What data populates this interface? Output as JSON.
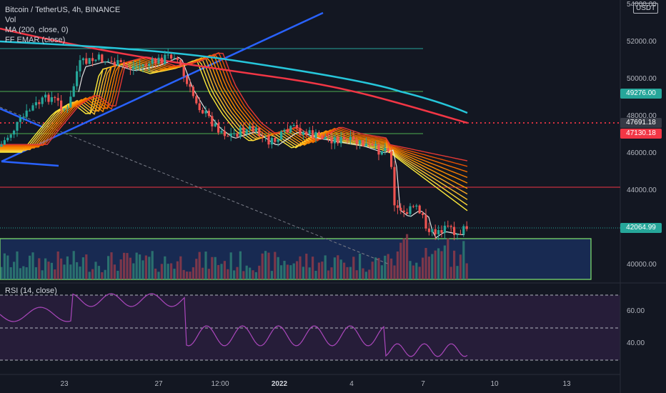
{
  "legend": {
    "symbol": "Bitcoin / TetherUS, 4h, BINANCE",
    "vol": "Vol",
    "ma": "MA (200, close, 0)",
    "emar": "FF EMAR (close)"
  },
  "rsi_label": "RSI (14, close)",
  "currency": "USDT",
  "price_axis": {
    "ticks": [
      "54000.00",
      "52000.00",
      "50000.00",
      "48000.00",
      "46000.00",
      "44000.00",
      "40000.00"
    ],
    "tags": [
      {
        "label": "49276.00",
        "color": "#26a69a"
      },
      {
        "label": "47691.18",
        "color": "#363a45"
      },
      {
        "label": "47130.18",
        "color": "#f23645"
      },
      {
        "label": "42064.99",
        "color": "#26a69a"
      }
    ]
  },
  "rsi_axis": {
    "ticks": [
      "60.00",
      "40.00"
    ]
  },
  "time_axis": {
    "ticks": [
      "23",
      "27",
      "12:00",
      "2022",
      "4",
      "7",
      "10",
      "13"
    ]
  },
  "chart_data": {
    "type": "candlestick",
    "symbol": "BTCUSDT",
    "timeframe": "4h",
    "ylim": [
      39000,
      54500
    ],
    "last_price": 42064.99,
    "ma200_last": 47130.18,
    "hline": 47691.18,
    "levels": [
      51700,
      49500,
      47050,
      44300
    ]
  }
}
